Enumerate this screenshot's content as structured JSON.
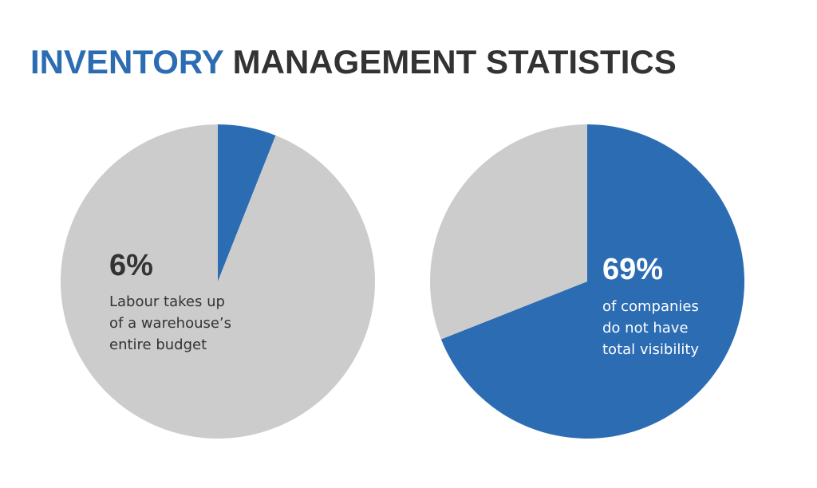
{
  "title": {
    "highlight": "INVENTORY",
    "highlight_color": "#2b6cb3",
    "rest": "MANAGEMENT STATISTICS",
    "rest_color": "#333333"
  },
  "chart_data": [
    {
      "type": "pie",
      "slices": [
        {
          "value": 6,
          "color": "#2b6cb3",
          "value_label": "6%",
          "caption": [
            "Labour takes up",
            "of a warehouse’s",
            "entire budget"
          ]
        },
        {
          "value": 94,
          "color": "#cccccc"
        }
      ]
    },
    {
      "type": "pie",
      "slices": [
        {
          "value": 69,
          "color": "#2b6cb3",
          "value_label": "69%",
          "caption": [
            "of companies",
            "do not have",
            "total visibility"
          ]
        },
        {
          "value": 31,
          "color": "#cccccc"
        }
      ]
    }
  ]
}
